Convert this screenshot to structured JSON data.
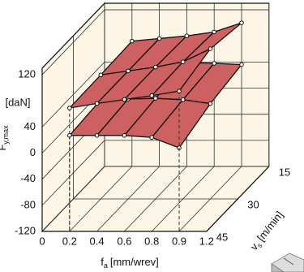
{
  "chart_data": {
    "type": "surface3d",
    "xlabel": {
      "symbol": "f",
      "sub": "a",
      "unit": "[mm/wrev]"
    },
    "depthlabel": {
      "symbol": "v",
      "sub": "s",
      "unit": "[m/min]"
    },
    "zlabel": {
      "symbol": "F",
      "sub": "y,max",
      "unit": "[daN]"
    },
    "xticks": [
      0,
      0.2,
      0.4,
      0.6,
      0.8,
      0.9,
      1.2
    ],
    "xlim": [
      0,
      1.2
    ],
    "depthticks": [
      15,
      30,
      45
    ],
    "depthlim": [
      45,
      15
    ],
    "zticks": [
      -120,
      -80,
      -40,
      0,
      40,
      120
    ],
    "zlim": [
      -120,
      130
    ],
    "grid": true,
    "surfaces": [
      {
        "color": "#cd6060",
        "x": [
          0.2,
          0.4,
          0.6,
          0.8,
          0.9
        ],
        "depth": [
          45,
          30,
          15
        ],
        "z": [
          [
            27,
            27,
            27,
            24,
            8
          ],
          [
            32,
            33,
            34,
            32,
            26
          ],
          [
            40,
            40,
            39,
            38,
            36
          ]
        ]
      },
      {
        "color": "#cd6060",
        "x": [
          0.2,
          0.4,
          0.6,
          0.8,
          0.9
        ],
        "depth": [
          45,
          30,
          15
        ],
        "z": [
          [
            69,
            76,
            82,
            88,
            95
          ],
          [
            70,
            76,
            82,
            90,
            110
          ],
          [
            72,
            76,
            80,
            86,
            100
          ]
        ]
      }
    ]
  }
}
